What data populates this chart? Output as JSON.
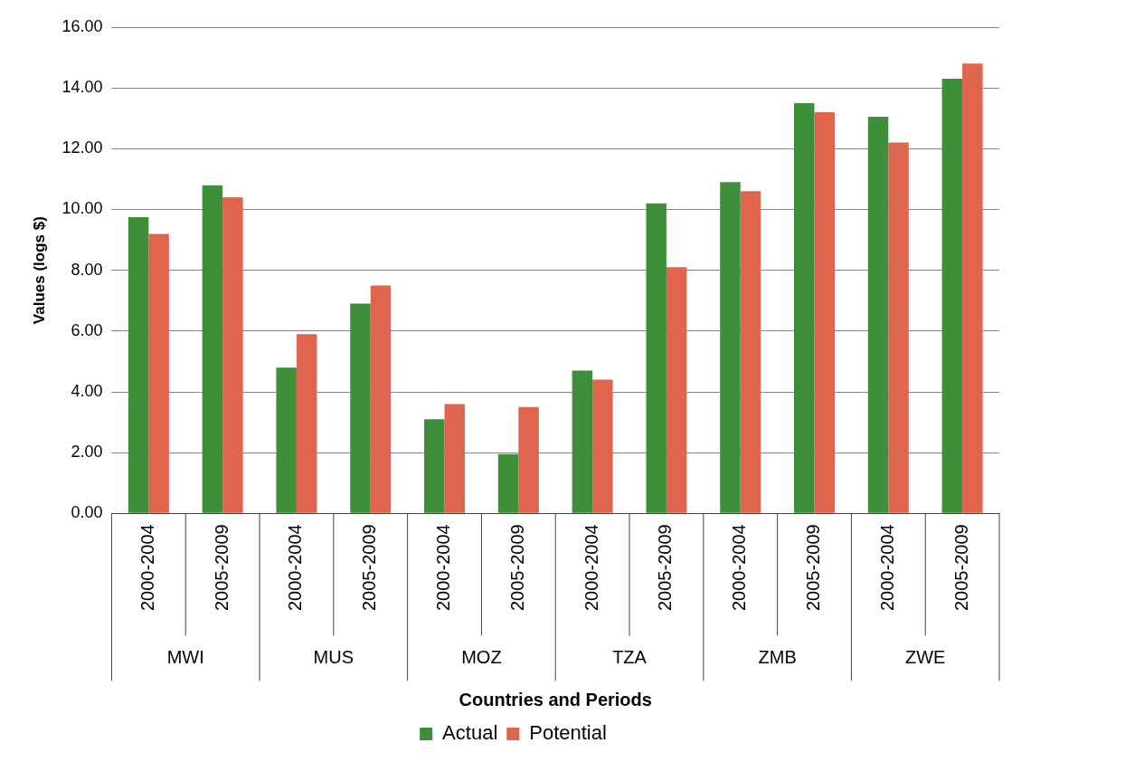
{
  "chart_data": {
    "type": "bar",
    "xlabel": "Countries and Periods",
    "ylabel": "Values (logs $)",
    "categories": [
      "2000-2004",
      "2005-2009",
      "2000-2004",
      "2005-2009",
      "2000-2004",
      "2005-2009",
      "2000-2004",
      "2005-2009",
      "2000-2004",
      "2005-2009",
      "2000-2004",
      "2005-2009"
    ],
    "annotations": [
      "MWI",
      "MUS",
      "MOZ",
      "TZA",
      "ZMB",
      "ZWE"
    ],
    "series": [
      {
        "name": "Actual",
        "color": "#3f8f3a",
        "values": [
          9.75,
          10.8,
          4.8,
          6.9,
          3.1,
          1.95,
          4.7,
          10.2,
          10.9,
          13.5,
          13.05,
          14.3
        ]
      },
      {
        "name": "Potential",
        "color": "#e0654f",
        "values": [
          9.2,
          10.4,
          5.9,
          7.5,
          3.6,
          3.5,
          4.4,
          8.1,
          10.6,
          13.2,
          12.2,
          14.8
        ]
      }
    ],
    "ylim": [
      0,
      16
    ],
    "yticks": [
      {
        "value": 0,
        "label": "0.00"
      },
      {
        "value": 2,
        "label": "2.00"
      },
      {
        "value": 4,
        "label": "4.00"
      },
      {
        "value": 6,
        "label": "6.00"
      },
      {
        "value": 8,
        "label": "8.00"
      },
      {
        "value": 10,
        "label": "10.00"
      },
      {
        "value": 12,
        "label": "12.00"
      },
      {
        "value": 14,
        "label": "14.00"
      },
      {
        "value": 16,
        "label": "16.00"
      }
    ],
    "grid": "y",
    "legend": "bottom"
  }
}
